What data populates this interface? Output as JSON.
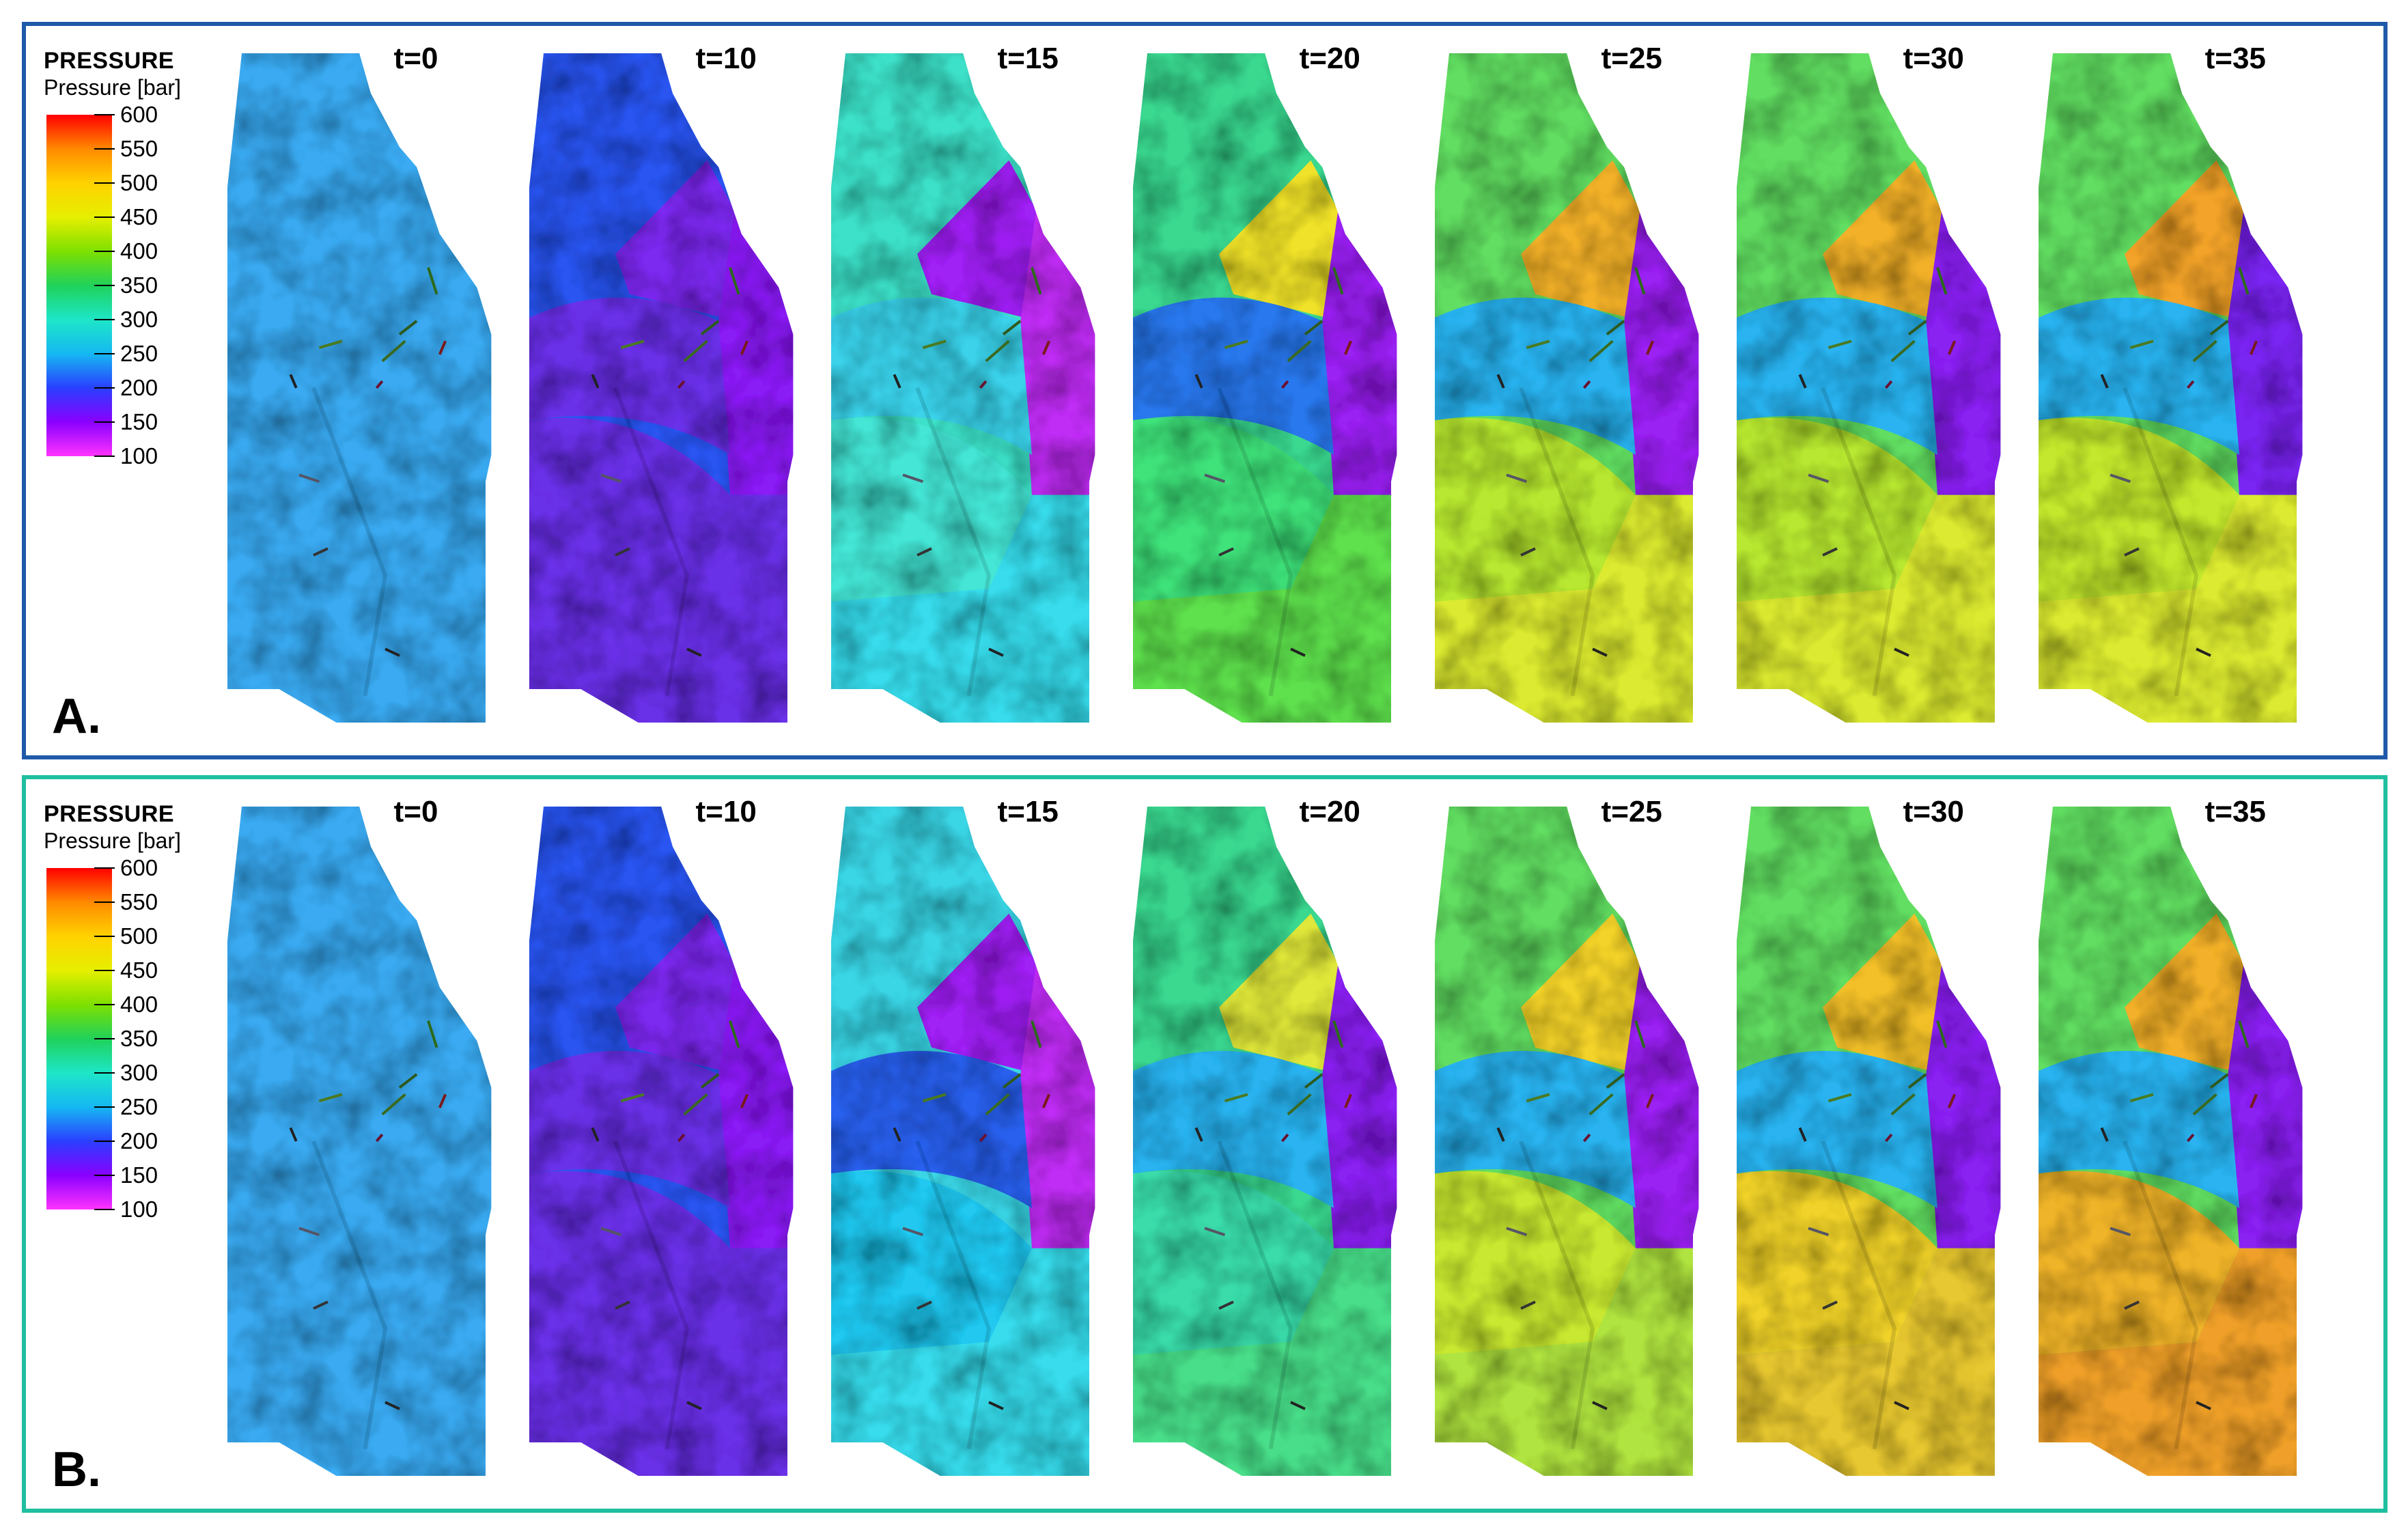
{
  "legend": {
    "title": "PRESSURE",
    "subtitle": "Pressure [bar]",
    "ticks": [
      "600",
      "550",
      "500",
      "450",
      "400",
      "350",
      "300",
      "250",
      "200",
      "150",
      "100"
    ]
  },
  "colormap": [
    "#ff0000",
    "#ff8a00",
    "#ffd200",
    "#e6ef00",
    "#7ee000",
    "#1fd25a",
    "#1ee6c8",
    "#15b8f2",
    "#2a3fff",
    "#8a00ff",
    "#ff33ff"
  ],
  "time_steps": [
    "t=0",
    "t=10",
    "t=15",
    "t=20",
    "t=25",
    "t=30",
    "t=35"
  ],
  "panels": [
    {
      "label": "A.",
      "border_color": "#1e5aa8",
      "maps": [
        {
          "time": "t=0",
          "region_colors": [
            "#3aaaf2",
            "#3aaaf2",
            "#3aaaf2",
            "#3aaaf2",
            "#3aaaf2",
            "#3aaaf2"
          ]
        },
        {
          "time": "t=10",
          "region_colors": [
            "#2a55f0",
            "#7d2cf0",
            "#8a1cf5",
            "#6a33e8",
            "#6a33e8",
            "#6a33e8"
          ]
        },
        {
          "time": "t=15",
          "region_colors": [
            "#3ee0c8",
            "#a020f5",
            "#c02ef5",
            "#3ad2ea",
            "#45e6d6",
            "#37dcec"
          ]
        },
        {
          "time": "t=20",
          "region_colors": [
            "#3ad890",
            "#f0e22a",
            "#9a22f2",
            "#2a78ee",
            "#40e27a",
            "#5ee04e"
          ]
        },
        {
          "time": "t=25",
          "region_colors": [
            "#62de62",
            "#f3b12c",
            "#9a22f2",
            "#2bb3f0",
            "#b8e830",
            "#dcea30"
          ]
        },
        {
          "time": "t=30",
          "region_colors": [
            "#62de62",
            "#f3b12c",
            "#8a22f2",
            "#2bb3f0",
            "#b8e830",
            "#dcea30"
          ]
        },
        {
          "time": "t=35",
          "region_colors": [
            "#62de62",
            "#f3a32c",
            "#7a28f2",
            "#2bb3f0",
            "#c3e82f",
            "#dcea30"
          ]
        }
      ]
    },
    {
      "label": "B.",
      "border_color": "#1fbfa0",
      "maps": [
        {
          "time": "t=0",
          "region_colors": [
            "#3aaaf2",
            "#3aaaf2",
            "#3aaaf2",
            "#3aaaf2",
            "#3aaaf2",
            "#3aaaf2"
          ]
        },
        {
          "time": "t=10",
          "region_colors": [
            "#2a55f0",
            "#7d2cf0",
            "#8a1cf5",
            "#6a33e8",
            "#6a33e8",
            "#6a33e8"
          ]
        },
        {
          "time": "t=15",
          "region_colors": [
            "#3ad6e6",
            "#a020f5",
            "#c02ef5",
            "#2a60ee",
            "#22c8f0",
            "#37dcec"
          ]
        },
        {
          "time": "t=20",
          "region_colors": [
            "#3ad890",
            "#e0e83a",
            "#8a22f2",
            "#2bb3f0",
            "#3adcaa",
            "#48df8a"
          ]
        },
        {
          "time": "t=25",
          "region_colors": [
            "#62de62",
            "#f3d22c",
            "#9a22f2",
            "#2bb3f0",
            "#c8e830",
            "#b0e440"
          ]
        },
        {
          "time": "t=30",
          "region_colors": [
            "#62de62",
            "#f3c02c",
            "#8a22f2",
            "#2bb3f0",
            "#f0d22c",
            "#e8c830"
          ]
        },
        {
          "time": "t=35",
          "region_colors": [
            "#62de62",
            "#f3b02c",
            "#8a22f2",
            "#2bb3f0",
            "#f0b42c",
            "#f0a02c"
          ]
        }
      ]
    }
  ]
}
